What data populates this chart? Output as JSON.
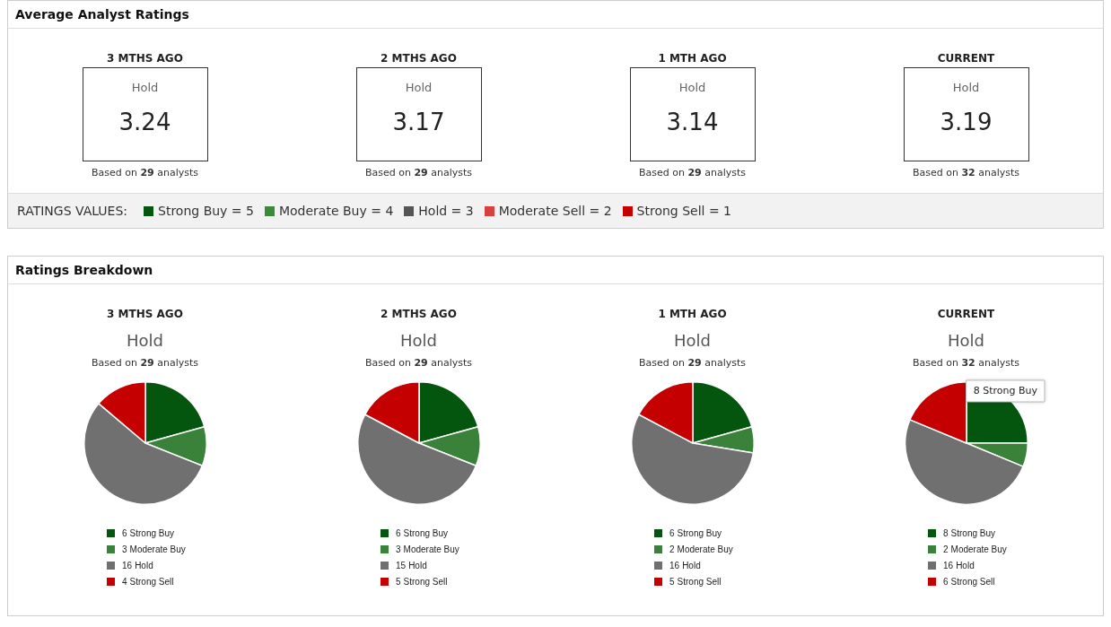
{
  "chart_data": [
    {
      "type": "other",
      "title": "Average Analyst Ratings",
      "categories": [
        "3 MTHS AGO",
        "2 MTHS AGO",
        "1 MTH AGO",
        "CURRENT"
      ],
      "values": [
        3.24,
        3.17,
        3.14,
        3.19
      ],
      "annotations": [
        {
          "text": "Hold",
          "x": "3 MTHS AGO"
        },
        {
          "text": "Based on 29 analysts",
          "x": "3 MTHS AGO"
        },
        {
          "text": "Hold",
          "x": "2 MTHS AGO"
        },
        {
          "text": "Based on 29 analysts",
          "x": "2 MTHS AGO"
        },
        {
          "text": "Hold",
          "x": "1 MTH AGO"
        },
        {
          "text": "Based on 29 analysts",
          "x": "1 MTH AGO"
        },
        {
          "text": "Hold",
          "x": "CURRENT"
        },
        {
          "text": "Based on 32 analysts",
          "x": "CURRENT"
        }
      ],
      "data_labels": true,
      "subtitle": "RATINGS VALUES:",
      "y_categories": [
        "Strong Buy = 5",
        "Moderate Buy = 4",
        "Hold = 3",
        "Moderate Sell = 2",
        "Strong Sell = 1"
      ]
    },
    {
      "type": "other",
      "title": "Ratings Breakdown"
    },
    {
      "type": "pie",
      "title": "3 MTHS AGO",
      "subtitle": "Hold",
      "annotations": [
        "Based on 29 analysts"
      ],
      "categories": [
        "Strong Buy",
        "Moderate Buy",
        "Hold",
        "Strong Sell"
      ],
      "values": [
        6,
        3,
        16,
        4
      ],
      "value_labels": [
        "6",
        "3",
        "16",
        "4"
      ],
      "colors": [
        "#04560f",
        "#3a823a",
        "#707070",
        "#c40000"
      ],
      "legend": "bottom"
    },
    {
      "type": "pie",
      "title": "2 MTHS AGO",
      "subtitle": "Hold",
      "annotations": [
        "Based on 29 analysts"
      ],
      "categories": [
        "Strong Buy",
        "Moderate Buy",
        "Hold",
        "Strong Sell"
      ],
      "values": [
        6,
        3,
        15,
        5
      ],
      "value_labels": [
        "6",
        "3",
        "15",
        "5"
      ],
      "colors": [
        "#04560f",
        "#3a823a",
        "#707070",
        "#c40000"
      ],
      "legend": "bottom"
    },
    {
      "type": "pie",
      "title": "1 MTH AGO",
      "subtitle": "Hold",
      "annotations": [
        "Based on 29 analysts"
      ],
      "categories": [
        "Strong Buy",
        "Moderate Buy",
        "Hold",
        "Strong Sell"
      ],
      "values": [
        6,
        2,
        16,
        5
      ],
      "value_labels": [
        "6",
        "2",
        "16",
        "5"
      ],
      "colors": [
        "#04560f",
        "#3a823a",
        "#707070",
        "#c40000"
      ],
      "legend": "bottom"
    },
    {
      "type": "pie",
      "title": "CURRENT",
      "subtitle": "Hold",
      "annotations": [
        "Based on 32 analysts",
        {
          "text": "8 Strong Buy",
          "x": "Strong Buy"
        }
      ],
      "categories": [
        "Strong Buy",
        "Moderate Buy",
        "Hold",
        "Strong Sell"
      ],
      "values": [
        8,
        2,
        16,
        6
      ],
      "value_labels": [
        "8",
        "2",
        "16",
        "6"
      ],
      "colors": [
        "#04560f",
        "#3a823a",
        "#707070",
        "#c40000"
      ],
      "legend": "bottom"
    }
  ]
}
